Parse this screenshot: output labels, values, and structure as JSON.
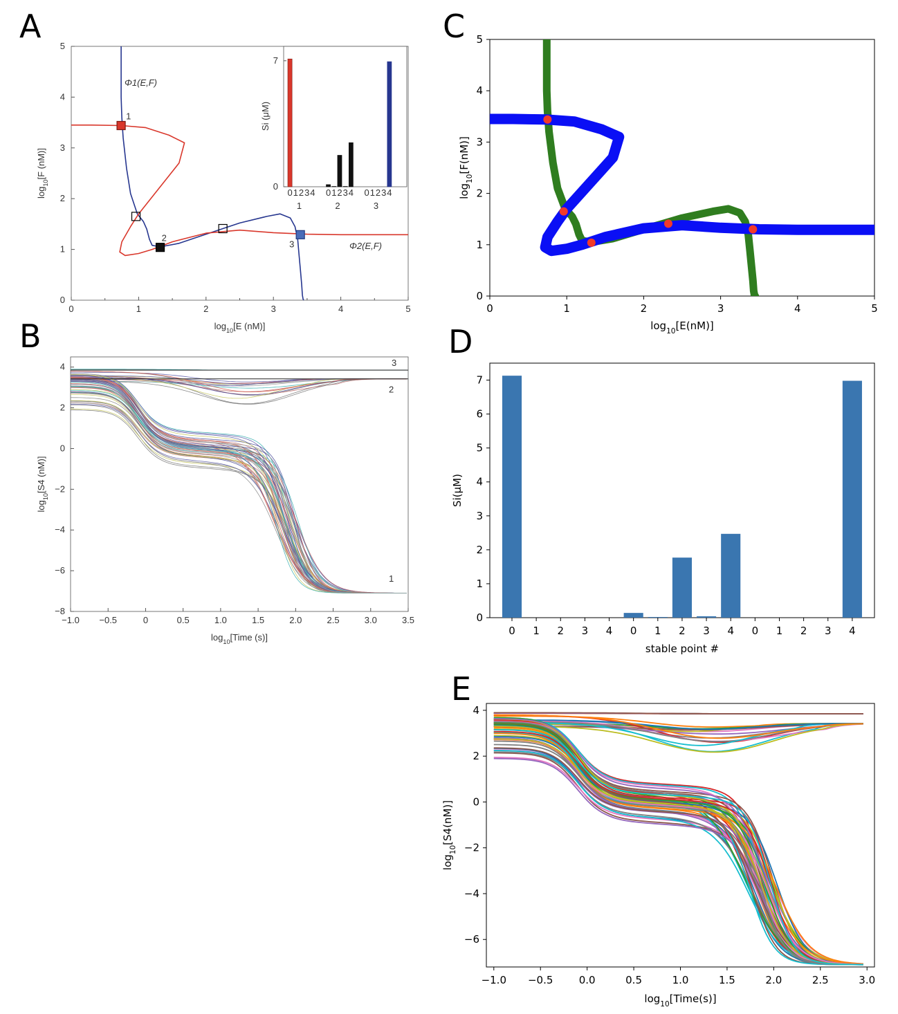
{
  "colors": {
    "red": "#d9372b",
    "navy": "#26368f",
    "blue": "#0a0ff5",
    "green": "#2f7d1f",
    "bar": "#3a76b0",
    "dot": "#f23a2a"
  },
  "panels": {
    "a": "A",
    "b": "B",
    "c": "C",
    "d": "D",
    "e": "E"
  },
  "chart_data": [
    {
      "id": "A",
      "type": "line",
      "xlabel": "log10[E (nM)]",
      "ylabel": "log10[F (nM)]",
      "xlim": [
        0,
        5
      ],
      "ylim": [
        0,
        5
      ],
      "xticks": [
        "0",
        "1",
        "2",
        "3",
        "4",
        "5"
      ],
      "yticks": [
        "0",
        "1",
        "2",
        "3",
        "4",
        "5"
      ],
      "series": [
        {
          "name": "Φ1(E,F)",
          "color": "navy",
          "x": [
            0.74,
            0.74,
            0.74,
            0.75,
            0.77,
            0.82,
            0.88,
            0.98,
            1.07,
            1.12,
            1.16,
            1.2,
            1.32,
            1.6,
            2.0,
            2.5,
            2.9,
            3.1,
            3.25,
            3.32,
            3.36,
            3.38,
            3.4,
            3.42,
            3.43,
            3.44,
            3.45
          ],
          "y": [
            5.0,
            4.5,
            4.0,
            3.6,
            3.2,
            2.6,
            2.1,
            1.7,
            1.55,
            1.4,
            1.2,
            1.08,
            1.05,
            1.12,
            1.3,
            1.52,
            1.65,
            1.7,
            1.62,
            1.45,
            1.2,
            0.9,
            0.6,
            0.3,
            0.1,
            0.02,
            0.0
          ]
        },
        {
          "name": "Φ2(E,F)",
          "color": "red",
          "x": [
            0.0,
            0.3,
            0.74,
            1.1,
            1.45,
            1.68,
            1.6,
            1.3,
            1.0,
            0.88,
            0.75,
            0.72,
            0.8,
            1.0,
            1.2,
            1.5,
            2.0,
            2.5,
            3.0,
            3.5,
            4.0,
            4.5,
            5.0
          ],
          "y": [
            3.45,
            3.45,
            3.44,
            3.4,
            3.25,
            3.1,
            2.7,
            2.2,
            1.7,
            1.45,
            1.15,
            0.95,
            0.88,
            0.92,
            1.0,
            1.15,
            1.32,
            1.38,
            1.33,
            1.3,
            1.29,
            1.29,
            1.29
          ]
        }
      ],
      "points": [
        {
          "label": "1",
          "x": 0.74,
          "y": 3.44,
          "style": "filled-red"
        },
        {
          "label": "",
          "x": 0.96,
          "y": 1.65,
          "style": "open"
        },
        {
          "label": "2",
          "x": 1.32,
          "y": 1.04,
          "style": "filled-black"
        },
        {
          "label": "",
          "x": 2.25,
          "y": 1.41,
          "style": "open"
        },
        {
          "label": "3",
          "x": 3.4,
          "y": 1.29,
          "style": "filled-blue"
        }
      ],
      "inset": {
        "type": "bar",
        "ylabel": "Si (μM)",
        "yticks": [
          "0",
          "7"
        ],
        "ylim": [
          0,
          7.8
        ],
        "groups": [
          {
            "name": "1",
            "color": "red",
            "ticks": [
              "0",
              "1",
              "2",
              "3",
              "4"
            ],
            "values": [
              7.1,
              0,
              0,
              0,
              0
            ]
          },
          {
            "name": "2",
            "color": "black",
            "ticks": [
              "0",
              "1",
              "2",
              "3",
              "4"
            ],
            "values": [
              0.12,
              0.02,
              1.75,
              0.02,
              2.45
            ]
          },
          {
            "name": "3",
            "color": "navy",
            "ticks": [
              "0",
              "1",
              "2",
              "3",
              "4"
            ],
            "values": [
              0,
              0,
              0,
              0,
              6.95
            ]
          }
        ]
      }
    },
    {
      "id": "B",
      "type": "line",
      "xlabel": "log10[Time (s)]",
      "ylabel": "log10[S4 (nM)]",
      "xlim": [
        -1.0,
        3.5
      ],
      "ylim": [
        -8,
        4.5
      ],
      "xticks": [
        "−1.0",
        "−0.5",
        "0",
        "0.5",
        "1.0",
        "1.5",
        "2.0",
        "2.5",
        "3.0",
        "3.5"
      ],
      "yticks": [
        "−8",
        "−6",
        "−4",
        "−2",
        "0",
        "2",
        "4"
      ],
      "annotations": [
        {
          "text": "3",
          "y": 3.85
        },
        {
          "text": "2",
          "y": 3.4
        },
        {
          "text": "1",
          "y": -6.85
        }
      ],
      "levels": {
        "top": 3.85,
        "mid": 3.42,
        "low": -6.85
      }
    },
    {
      "id": "C",
      "type": "line",
      "xlabel": "log10[E(nM)]",
      "ylabel": "log10[F(nM)]",
      "xlim": [
        0,
        5
      ],
      "ylim": [
        0,
        5
      ],
      "xticks": [
        "0",
        "1",
        "2",
        "3",
        "4",
        "5"
      ],
      "yticks": [
        "0",
        "1",
        "2",
        "3",
        "4",
        "5"
      ],
      "series": [
        {
          "name": "",
          "color": "green",
          "x": [
            0.74,
            0.74,
            0.74,
            0.75,
            0.77,
            0.82,
            0.88,
            0.98,
            1.07,
            1.12,
            1.16,
            1.2,
            1.32,
            1.6,
            2.0,
            2.5,
            2.9,
            3.1,
            3.25,
            3.32,
            3.36,
            3.38,
            3.4,
            3.42,
            3.43,
            3.44,
            3.45
          ],
          "y": [
            5.0,
            4.5,
            4.0,
            3.6,
            3.2,
            2.6,
            2.1,
            1.7,
            1.55,
            1.4,
            1.2,
            1.08,
            1.05,
            1.12,
            1.3,
            1.52,
            1.65,
            1.7,
            1.62,
            1.45,
            1.2,
            0.9,
            0.6,
            0.3,
            0.1,
            0.02,
            0.0
          ]
        },
        {
          "name": "",
          "color": "blue",
          "x": [
            0.0,
            0.3,
            0.74,
            1.1,
            1.45,
            1.68,
            1.6,
            1.3,
            1.0,
            0.88,
            0.75,
            0.72,
            0.8,
            1.0,
            1.2,
            1.5,
            2.0,
            2.5,
            3.0,
            3.5,
            4.0,
            4.5,
            5.0
          ],
          "y": [
            3.45,
            3.45,
            3.44,
            3.4,
            3.25,
            3.1,
            2.7,
            2.2,
            1.7,
            1.45,
            1.15,
            0.95,
            0.88,
            0.92,
            1.0,
            1.15,
            1.32,
            1.38,
            1.33,
            1.3,
            1.29,
            1.29,
            1.29
          ]
        }
      ],
      "points": [
        {
          "x": 0.75,
          "y": 3.44
        },
        {
          "x": 0.96,
          "y": 1.65
        },
        {
          "x": 1.32,
          "y": 1.04
        },
        {
          "x": 2.32,
          "y": 1.41
        },
        {
          "x": 3.42,
          "y": 1.3
        }
      ]
    },
    {
      "id": "D",
      "type": "bar",
      "xlabel": "stable point #",
      "ylabel": "Si(μM)",
      "ylim": [
        0,
        7.5
      ],
      "yticks": [
        "0",
        "1",
        "2",
        "3",
        "4",
        "5",
        "6",
        "7"
      ],
      "categories": [
        "0",
        "1",
        "2",
        "3",
        "4",
        "0",
        "1",
        "2",
        "3",
        "4",
        "0",
        "1",
        "2",
        "3",
        "4"
      ],
      "values": [
        7.13,
        0,
        0,
        0,
        0,
        0.14,
        0.02,
        1.77,
        0.04,
        2.47,
        0,
        0,
        0,
        0,
        6.98
      ]
    },
    {
      "id": "E",
      "type": "line",
      "xlabel": "log10[Time(s)]",
      "ylabel": "log10[S4(nM)]",
      "xlim": [
        -1.08,
        3.08
      ],
      "ylim": [
        -7.2,
        4.3
      ],
      "xticks": [
        "−1.0",
        "−0.5",
        "0.0",
        "0.5",
        "1.0",
        "1.5",
        "2.0",
        "2.5",
        "3.0"
      ],
      "yticks": [
        "−6",
        "−4",
        "−2",
        "0",
        "2",
        "4"
      ],
      "levels": {
        "top": 3.85,
        "mid": 3.42,
        "low": -6.85
      },
      "series_colors": [
        "#1f77b4",
        "#ff7f0e",
        "#2ca02c",
        "#d62728",
        "#9467bd",
        "#8c564b",
        "#e377c2",
        "#7f7f7f",
        "#bcbd22",
        "#17becf"
      ]
    }
  ]
}
